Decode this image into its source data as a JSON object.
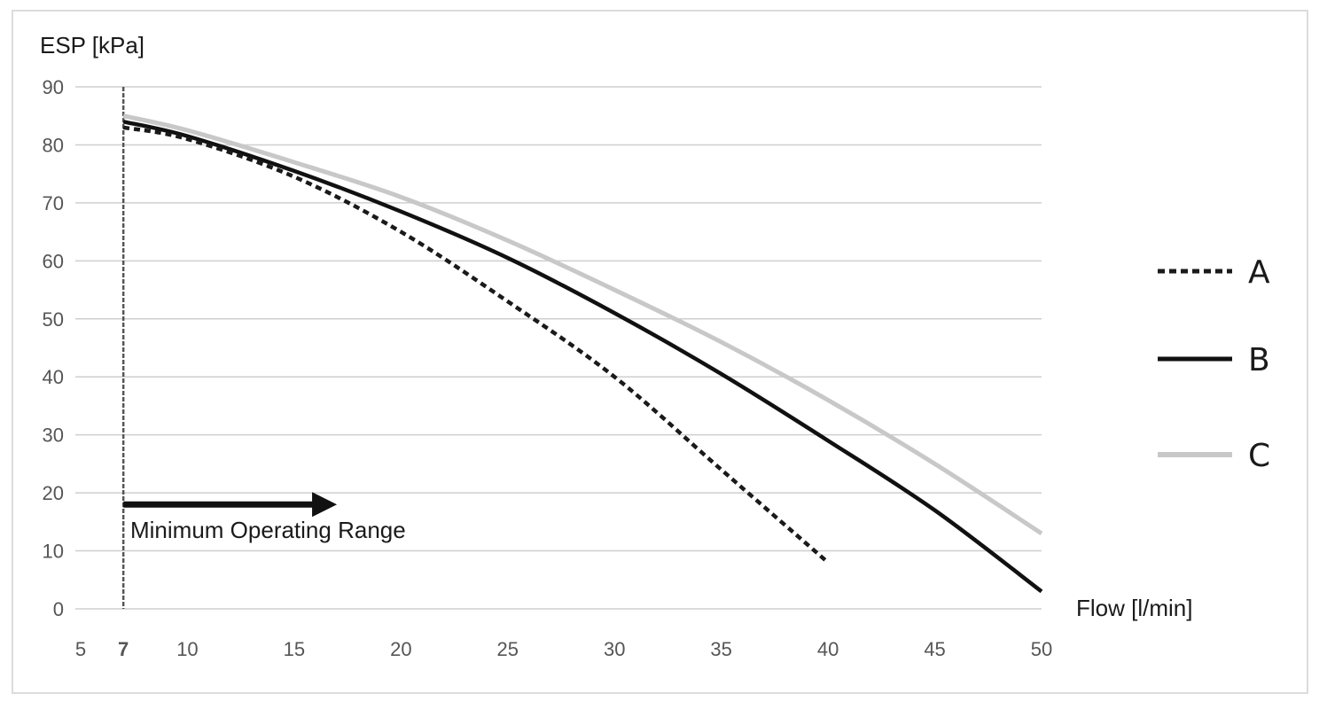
{
  "chart_data": {
    "type": "line",
    "ylabel": "ESP [kPa]",
    "xlabel": "Flow [l/min]",
    "xlim": [
      5,
      50
    ],
    "ylim": [
      0,
      90
    ],
    "x_ticks": [
      5,
      7,
      10,
      15,
      20,
      25,
      30,
      35,
      40,
      45,
      50
    ],
    "y_ticks": [
      0,
      10,
      20,
      30,
      40,
      50,
      60,
      70,
      80,
      90
    ],
    "grid": "horizontal",
    "legend_position": "right",
    "annotation": {
      "text": "Minimum Operating Range",
      "x_start": 7,
      "arrow_from": 7,
      "arrow_to": 17,
      "arrow_y": 18
    },
    "series": [
      {
        "name": "A",
        "style": "dotted",
        "color": "#1a1a1a",
        "x": [
          7,
          10,
          15,
          20,
          25,
          30,
          35,
          40
        ],
        "y": [
          83,
          81,
          74.5,
          65,
          53,
          40,
          24,
          8
        ]
      },
      {
        "name": "B",
        "style": "solid",
        "color": "#111111",
        "x": [
          7,
          10,
          15,
          20,
          25,
          30,
          35,
          40,
          45,
          50
        ],
        "y": [
          84,
          81.5,
          75.5,
          68.5,
          60.5,
          51,
          40.5,
          29,
          17,
          3
        ]
      },
      {
        "name": "C",
        "style": "solid",
        "color": "#c8c8c8",
        "x": [
          7,
          10,
          15,
          20,
          25,
          30,
          35,
          40,
          45,
          50
        ],
        "y": [
          85,
          82.5,
          77,
          71,
          63.5,
          55,
          46,
          36,
          25,
          13
        ]
      }
    ]
  }
}
